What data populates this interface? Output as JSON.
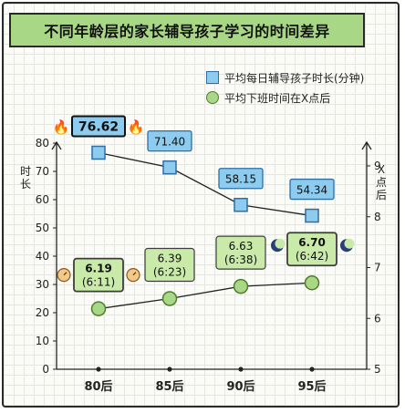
{
  "title": "不同年龄层的家长辅导孩子学习的时间差异",
  "chart_data": {
    "type": "line",
    "categories": [
      "80后",
      "85后",
      "90后",
      "95后"
    ],
    "series": [
      {
        "name": "平均每日辅导孩子时长(分钟)",
        "axis": "left",
        "marker": "square",
        "color": "#8dcbef",
        "values": [
          76.62,
          71.4,
          58.15,
          54.34
        ],
        "labels": [
          "76.62",
          "71.40",
          "58.15",
          "54.34"
        ]
      },
      {
        "name": "平均下班时间在X点后",
        "axis": "right",
        "marker": "circle",
        "color": "#a8d886",
        "values": [
          6.19,
          6.39,
          6.63,
          6.7
        ],
        "labels": [
          "6.19",
          "6.39",
          "6.63",
          "6.70"
        ],
        "sublabels": [
          "(6:11)",
          "(6:23)",
          "(6:38)",
          "(6:42)"
        ]
      }
    ],
    "y_left": {
      "label": "时长",
      "ticks": [
        0,
        10,
        20,
        30,
        40,
        50,
        60,
        70,
        80
      ],
      "range": [
        0,
        80
      ]
    },
    "y_right": {
      "label": "X点后",
      "ticks": [
        5,
        6,
        7,
        8,
        9
      ],
      "range": [
        5,
        9
      ]
    },
    "highlight": {
      "max_blue_index": 0,
      "max_green_index": 3,
      "bold_green_index": 0
    },
    "legend_position": "top-right"
  },
  "colors": {
    "title_bg": "#a8d886",
    "blue_fill": "#8dcbef",
    "blue_stroke": "#2e6ea3",
    "green_fill": "#a8d886",
    "green_stroke": "#4f7d2f",
    "label_green_bg": "#c9eaa8"
  },
  "icons": {
    "fire": "fire-icon",
    "clock": "clock-icon",
    "moon": "moon-icon"
  }
}
